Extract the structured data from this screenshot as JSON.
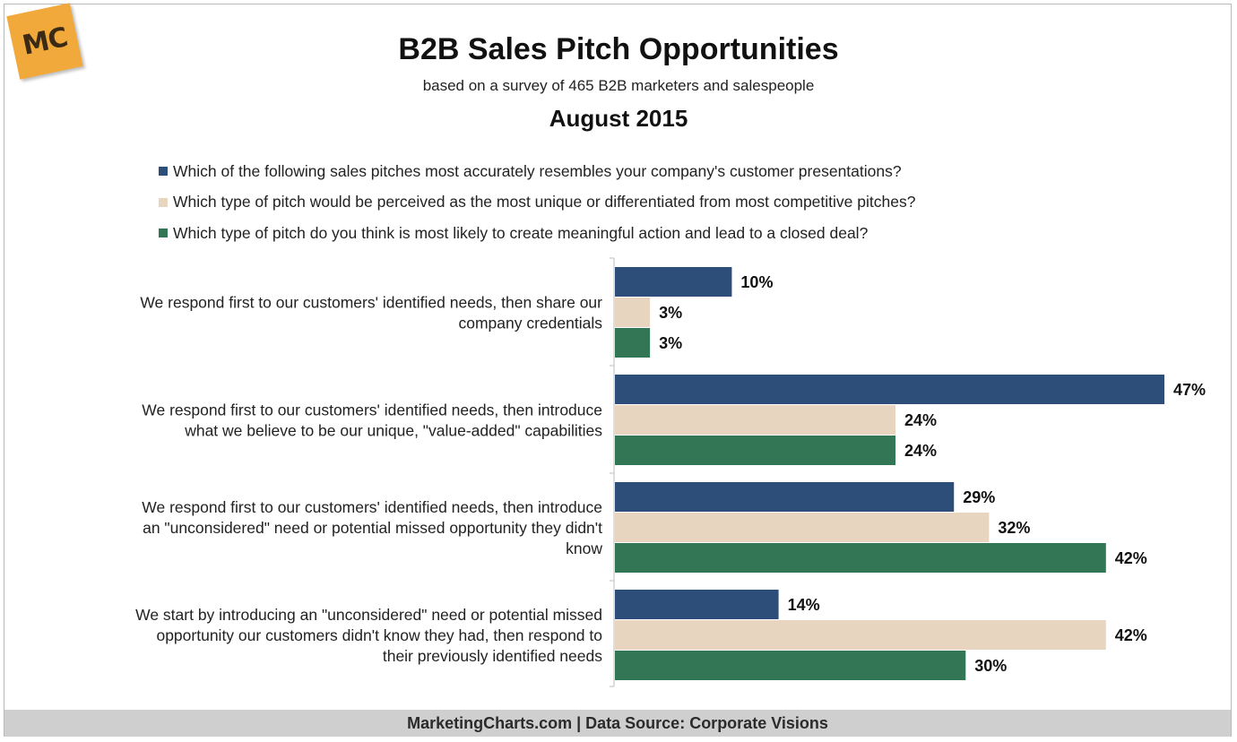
{
  "logo_text": "MC",
  "chart_data": {
    "type": "bar",
    "orientation": "horizontal",
    "title": "B2B Sales Pitch Opportunities",
    "subtitle": "based on a survey of 465 B2B marketers and salespeople",
    "date": "August 2015",
    "categories": [
      [
        "We respond first to our customers' identified needs, then share our",
        "company credentials"
      ],
      [
        "We respond first to our customers' identified needs, then introduce",
        "what we believe to be our unique, \"value-added\" capabilities"
      ],
      [
        "We respond first to our customers' identified needs, then introduce",
        "an \"unconsidered\" need or potential missed opportunity they didn't",
        "know"
      ],
      [
        "We start by introducing an \"unconsidered\" need or potential missed",
        "opportunity our customers didn't know they had, then respond to",
        "their previously  identified needs"
      ]
    ],
    "series": [
      {
        "name": "Which of the following sales pitches most accurately resembles your company's customer presentations?",
        "color": "#2e4e7a",
        "values": [
          10,
          47,
          29,
          14
        ]
      },
      {
        "name": "Which type of pitch would be perceived as the most unique or differentiated from most competitive pitches?",
        "color": "#e8d5c0",
        "values": [
          3,
          24,
          32,
          42
        ]
      },
      {
        "name": "Which type of pitch do you think is most likely to create meaningful action and lead to a closed deal?",
        "color": "#327656",
        "values": [
          3,
          24,
          42,
          30
        ]
      }
    ],
    "value_suffix": "%",
    "xlim": [
      0,
      47
    ]
  },
  "footer": "MarketingCharts.com | Data Source: Corporate Visions"
}
